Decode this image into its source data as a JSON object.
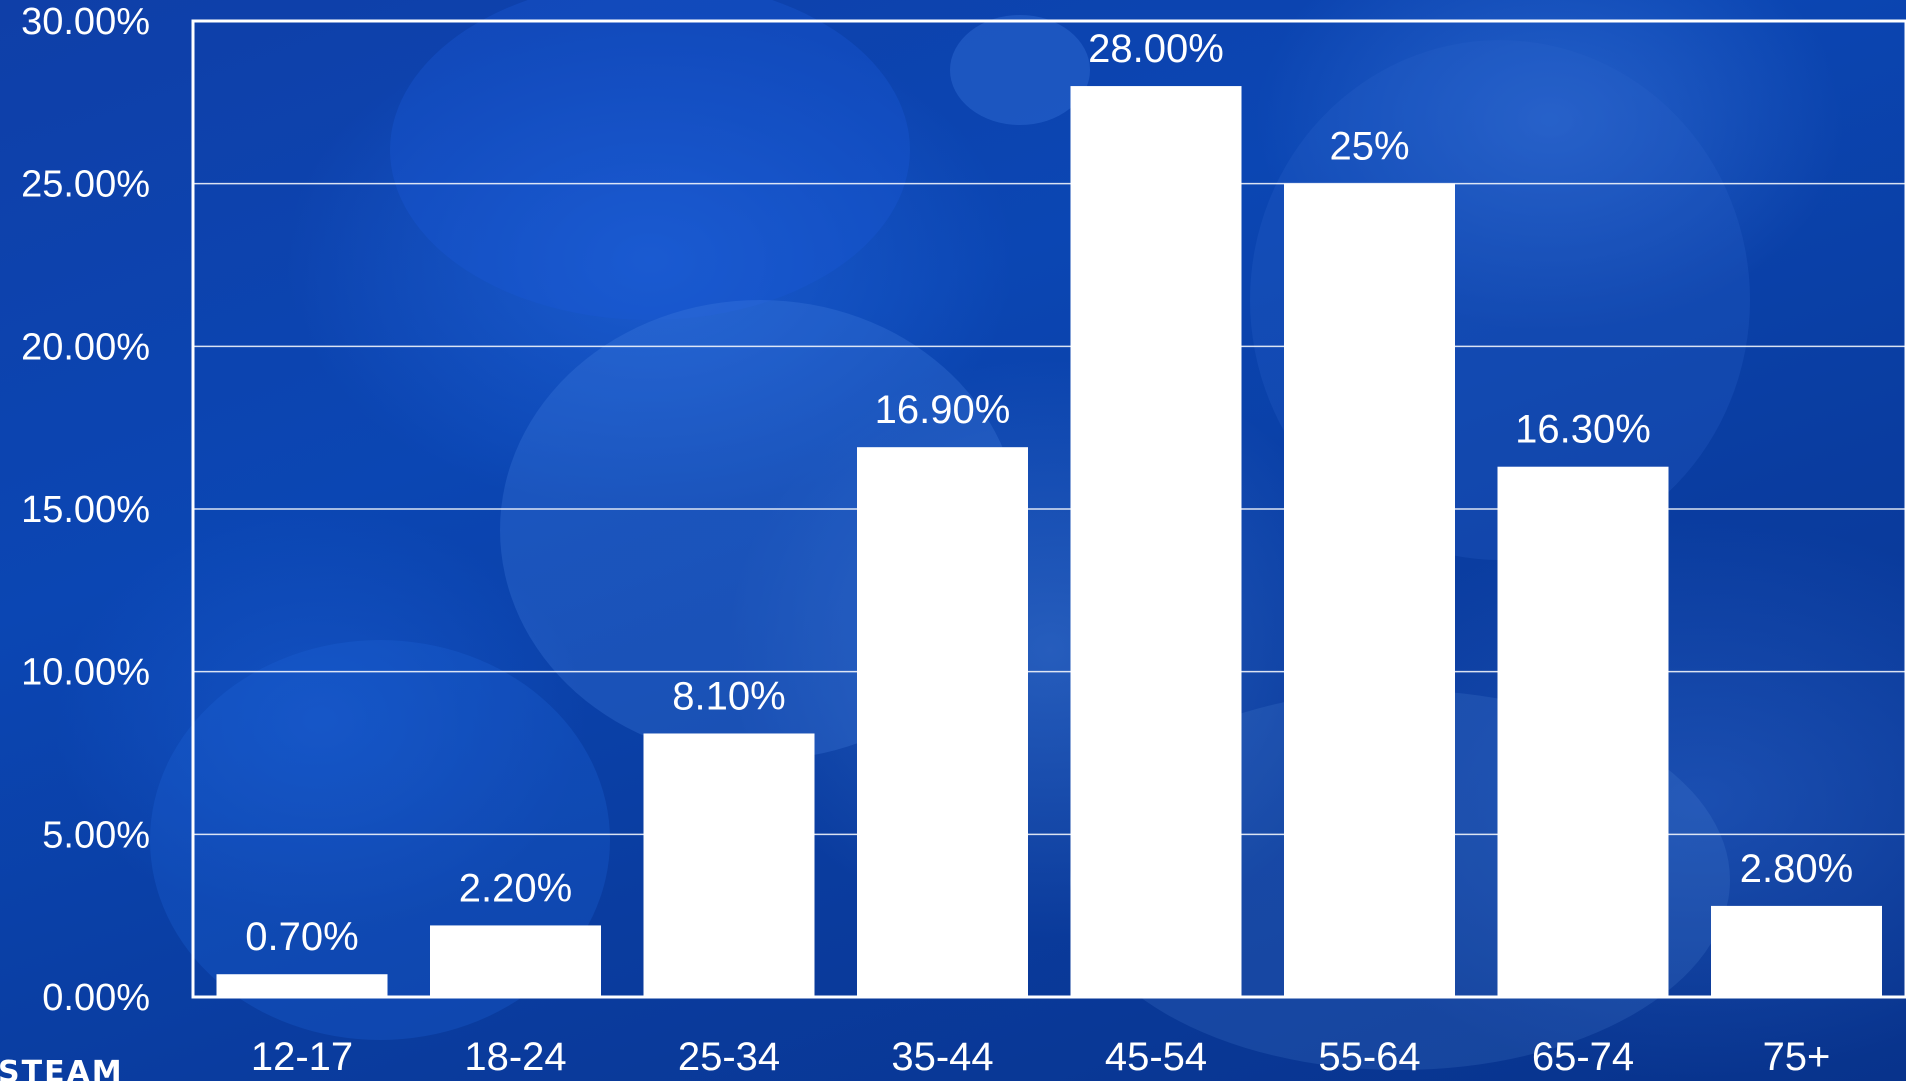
{
  "chart_data": {
    "type": "bar",
    "categories": [
      "12-17",
      "18-24",
      "25-34",
      "35-44",
      "45-54",
      "55-64",
      "65-74",
      "75+"
    ],
    "values": [
      0.7,
      2.2,
      8.1,
      16.9,
      28.0,
      25,
      16.3,
      2.8
    ],
    "data_labels": [
      "0.70%",
      "2.20%",
      "8.10%",
      "16.90%",
      "28.00%",
      "25%",
      "16.30%",
      "2.80%"
    ],
    "y_ticks": [
      "0.00%",
      "5.00%",
      "10.00%",
      "15.00%",
      "20.00%",
      "25.00%",
      "30.00%"
    ],
    "ylim": [
      0,
      30
    ],
    "grid": true,
    "legend": "none",
    "bar_color": "#ffffff",
    "gridline_color": "#ffffff",
    "background_color": "#0b46b3"
  },
  "logo_text": "STEAM"
}
